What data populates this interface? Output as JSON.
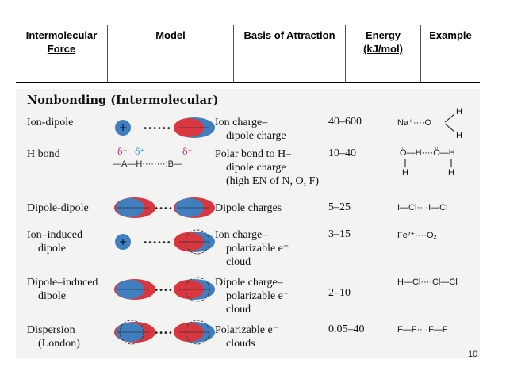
{
  "header": {
    "col1": "Intermolecular Force",
    "col2": "Model",
    "col3": "Basis of Attraction",
    "col4": "Energy (kJ/mol)",
    "col5": "Example"
  },
  "section_title": "Nonbonding (Intermolecular)",
  "rows": [
    {
      "force": [
        "Ion-dipole"
      ],
      "basis": [
        "Ion charge–",
        "dipole charge"
      ],
      "energy": "40–600",
      "example": "Na⁺····O"
    },
    {
      "force": [
        "H bond"
      ],
      "basis": [
        "Polar bond to H–",
        "dipole charge",
        "(high EN of N, O, F)"
      ],
      "energy": "10–40",
      "example": ":Ö—H····Ö—H"
    },
    {
      "force": [
        "Dipole-dipole"
      ],
      "basis": [
        "Dipole charges"
      ],
      "energy": "5–25",
      "example": "I—Cl····I—Cl"
    },
    {
      "force": [
        "Ion–induced",
        "dipole"
      ],
      "basis": [
        "Ion charge–",
        "polarizable e⁻",
        "cloud"
      ],
      "energy": "3–15",
      "example": "Fe²⁺····O₂"
    },
    {
      "force": [
        "Dipole–induced",
        "dipole"
      ],
      "basis": [
        "Dipole charge–",
        "polarizable e⁻",
        "cloud"
      ],
      "energy": "2–10",
      "example": "H—Cl····Cl—Cl"
    },
    {
      "force": [
        "Dispersion",
        "(London)"
      ],
      "basis": [
        "Polarizable e⁻",
        "clouds"
      ],
      "energy": "0.05–40",
      "example": "F—F····F—F"
    }
  ],
  "hbond_model": {
    "delta1": "δ⁻",
    "delta2": "δ⁺",
    "delta3": "δ⁻",
    "text": "—A—H········:B—"
  },
  "ion_symbol": "+",
  "colors": {
    "red": "#d8373f",
    "blue": "#3f7fc0",
    "delta_neg": "#c0286f",
    "delta_pos": "#1a8fd0"
  },
  "page_number": "10"
}
